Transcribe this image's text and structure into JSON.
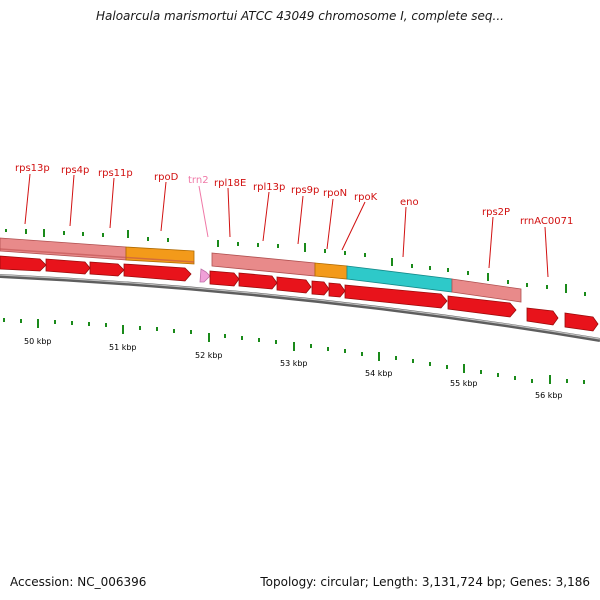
{
  "title": "Haloarcula marismortui ATCC 43049 chromosome I, complete seq...",
  "accession": "Accession: NC_006396",
  "summary": "Topology: circular; Length: 3,131,724 bp; Genes: 3,186",
  "colors": {
    "gene_label": "#d11010",
    "trna_label": "#f07aa8",
    "cds_arrow": "#e8131b",
    "band_gene": "#e88a8a",
    "band_sigma": "#f39a1a",
    "band_enolase": "#2ec9c9",
    "tick": "#1a8a1a",
    "backbone": "#808080"
  },
  "gene_labels": [
    {
      "id": "rps13p",
      "text": "rps13p",
      "kind": "gene"
    },
    {
      "id": "rps4p",
      "text": "rps4p",
      "kind": "gene"
    },
    {
      "id": "rps11p",
      "text": "rps11p",
      "kind": "gene"
    },
    {
      "id": "rpod",
      "text": "rpoD",
      "kind": "gene"
    },
    {
      "id": "trn2",
      "text": "trn2",
      "kind": "trna"
    },
    {
      "id": "rpl18e",
      "text": "rpl18E",
      "kind": "gene"
    },
    {
      "id": "rpl13p",
      "text": "rpl13p",
      "kind": "gene"
    },
    {
      "id": "rps9p",
      "text": "rps9p",
      "kind": "gene"
    },
    {
      "id": "rpon",
      "text": "rpoN",
      "kind": "gene"
    },
    {
      "id": "rpok",
      "text": "rpoK",
      "kind": "gene"
    },
    {
      "id": "eno",
      "text": "eno",
      "kind": "gene"
    },
    {
      "id": "rps2p",
      "text": "rps2P",
      "kind": "gene"
    },
    {
      "id": "rrnac0071",
      "text": "rrnAC0071",
      "kind": "gene"
    }
  ],
  "scale_labels": [
    "50 kbp",
    "51 kbp",
    "52 kbp",
    "53 kbp",
    "54 kbp",
    "55 kbp",
    "56 kbp"
  ]
}
